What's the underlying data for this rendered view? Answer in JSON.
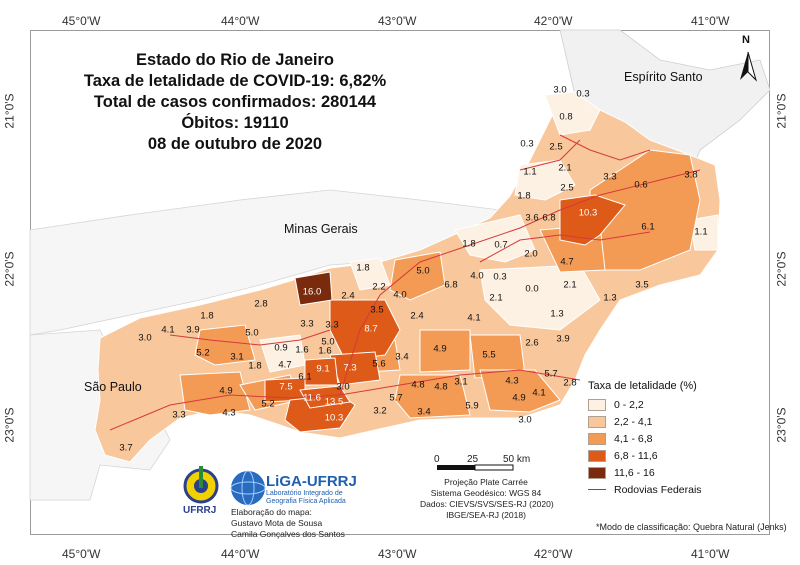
{
  "coords": {
    "top": [
      "45°0'W",
      "44°0'W",
      "43°0'W",
      "42°0'W",
      "41°0'W"
    ],
    "bottom": [
      "45°0'W",
      "44°0'W",
      "43°0'W",
      "42°0'W",
      "41°0'W"
    ],
    "left": [
      "21°0'S",
      "22°0'S",
      "23°0'S"
    ],
    "right": [
      "21°0'S",
      "22°0'S",
      "23°0'S"
    ]
  },
  "title": {
    "line1": "Estado do Rio de Janeiro",
    "line2": "Taxa de letalidade de COVID-19: 6,82%",
    "line3": "Total de casos confirmados: 280144",
    "line4": "Óbitos: 19110",
    "line5": "08 de outubro de 2020"
  },
  "neighbors": {
    "es": "Espírito Santo",
    "mg": "Minas Gerais",
    "sp": "São Paulo"
  },
  "north_label": "N",
  "municipality_values": [
    "3.0",
    "0.3",
    "0.8",
    "0.3",
    "2.5",
    "1.1",
    "2.1",
    "3.3",
    "0.6",
    "3.8",
    "2.5",
    "1.8",
    "3.6",
    "6.8",
    "10.3",
    "6.1",
    "1.1",
    "1.8",
    "0.7",
    "2.0",
    "4.7",
    "1.8",
    "5.0",
    "4.0",
    "0.3",
    "6.8",
    "3.5",
    "1.3",
    "2.1",
    "0.0",
    "2.1",
    "2.8",
    "2.4",
    "4.0",
    "2.2",
    "1.3",
    "4.1",
    "3.9",
    "3.0",
    "5.0",
    "3.3",
    "3.3",
    "8.7",
    "3.5",
    "2.4",
    "4.1",
    "1.8",
    "5.2",
    "3.1",
    "0.9",
    "1.6",
    "5.0",
    "4.9",
    "5.5",
    "2.6",
    "3.9",
    "1.8",
    "4.7",
    "6.1",
    "9.1",
    "7.3",
    "5.6",
    "3.4",
    "4.9",
    "7.5",
    "3.0",
    "4.8",
    "4.8",
    "3.1",
    "4.3",
    "5.7",
    "2.8",
    "11.6",
    "13.5",
    "5.2",
    "5.7",
    "4.1",
    "4.9",
    "3.3",
    "4.3",
    "3.2",
    "3.4",
    "5.9",
    "10.3",
    "3.0",
    "3.7",
    "1.6",
    "16.0"
  ],
  "legend": {
    "title": "Taxa de letalidade (%)",
    "classes": [
      {
        "label": "0 - 2,2",
        "color": "#fdf1e4"
      },
      {
        "label": "2,2 - 4,1",
        "color": "#f8c79b"
      },
      {
        "label": "4,1 - 6,8",
        "color": "#f39a55"
      },
      {
        "label": "6,8 - 11,6",
        "color": "#dd5a18"
      },
      {
        "label": "11,6 - 16",
        "color": "#7a2b0e"
      }
    ],
    "roads_label": "Rodovias Federais",
    "road_color": "#d63a3a"
  },
  "scale": {
    "t0": "0",
    "t1": "25",
    "t2": "50 km"
  },
  "projection": {
    "l1": "Projeção Plate Carrée",
    "l2": "Sistema Geodésico: WGS 84",
    "l3": "Dados: CIEVS/SVS/SES-RJ (2020)",
    "l4": "IBGE/SEA-RJ (2018)"
  },
  "credits": {
    "l1": "Elaboração do mapa:",
    "l2": "Gustavo Mota de Sousa",
    "l3": "Camila Gonçalves dos Santos"
  },
  "logos": {
    "ufrrj": "UFRRJ",
    "liga": "LiGA-UFRRJ",
    "liga_sub1": "Laboratório Integrado de",
    "liga_sub2": "Geografia Física Aplicada"
  },
  "note": "*Modo de classificação: Quebra Natural (Jenks)"
}
